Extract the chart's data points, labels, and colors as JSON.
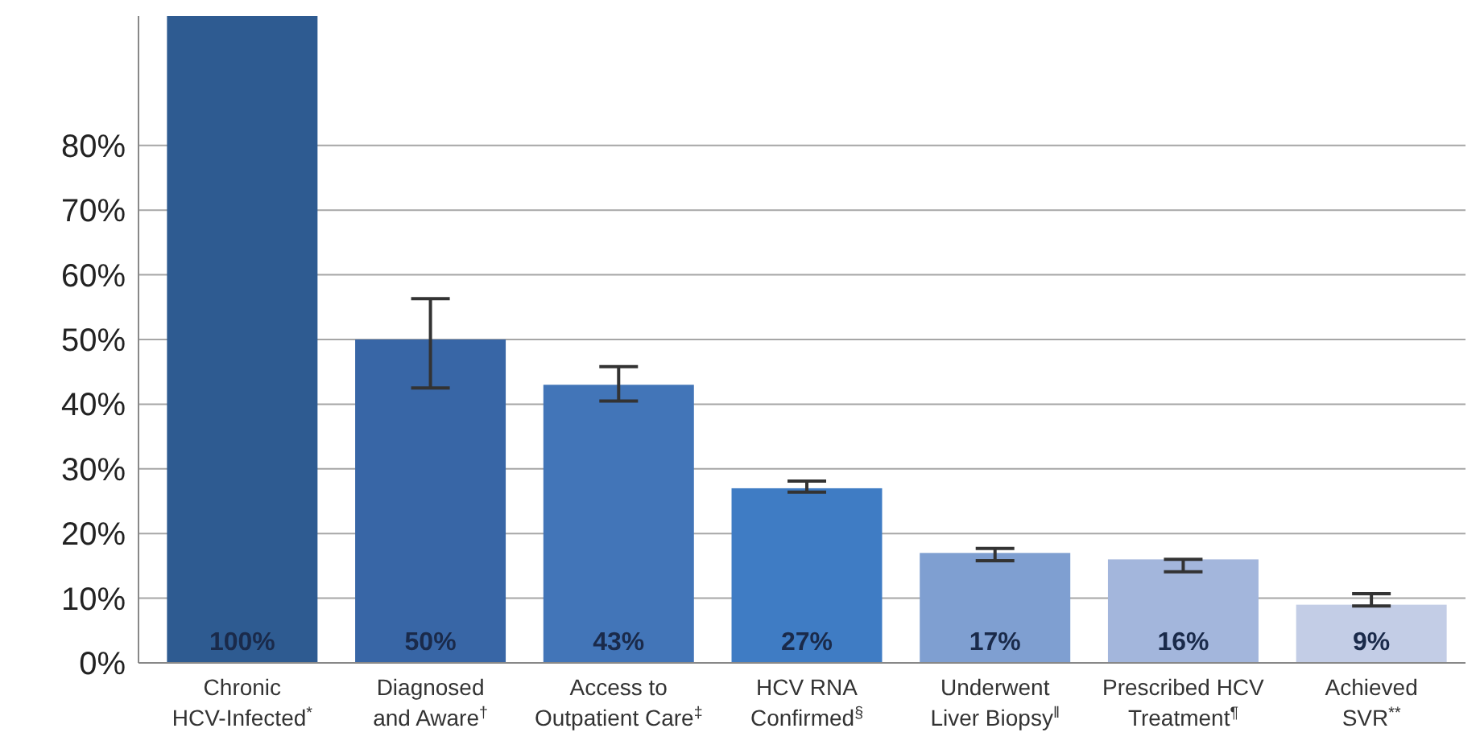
{
  "chart_data": {
    "type": "bar",
    "categories": [
      "Chronic\nHCV-Infected$^{*}$",
      "Diagnosed\nand Aware$^{†}$",
      "Access to\nOutpatient Care$^{‡}$",
      "HCV RNA\nConfirmed$^{§}$",
      "Underwent\nLiver Biopsy$^{‖}$",
      "Prescribed HCV\nTreatment$^{¶}$",
      "Achieved\nSVR$^{**}$"
    ],
    "values": [
      100,
      50,
      43,
      27,
      17,
      16,
      9
    ],
    "colors": [
      "#2e5b91",
      "#3866a6",
      "#4275b8",
      "#3f7cc4",
      "#7f9fd1",
      "#a3b6dc",
      "#c3cde6"
    ],
    "errors": [
      null,
      [
        42.5,
        56.3
      ],
      [
        40.5,
        45.8
      ],
      [
        26.4,
        28.1
      ],
      [
        15.8,
        17.7
      ],
      [
        14.1,
        16.0
      ],
      [
        8.8,
        10.7
      ]
    ],
    "value_labels": [
      "100%",
      "50%",
      "43%",
      "27%",
      "17%",
      "16%",
      "9%"
    ],
    "ylim": [
      0,
      100
    ],
    "yticks": [
      {
        "value": 0,
        "label": "0%"
      },
      {
        "value": 10,
        "label": "10%"
      },
      {
        "value": 20,
        "label": "20%"
      },
      {
        "value": 30,
        "label": "30%"
      },
      {
        "value": 40,
        "label": "40%"
      },
      {
        "value": 50,
        "label": "50%"
      },
      {
        "value": 60,
        "label": "60%"
      },
      {
        "value": 70,
        "label": "70%"
      },
      {
        "value": 80,
        "label": "80%"
      }
    ],
    "grid": "y"
  }
}
